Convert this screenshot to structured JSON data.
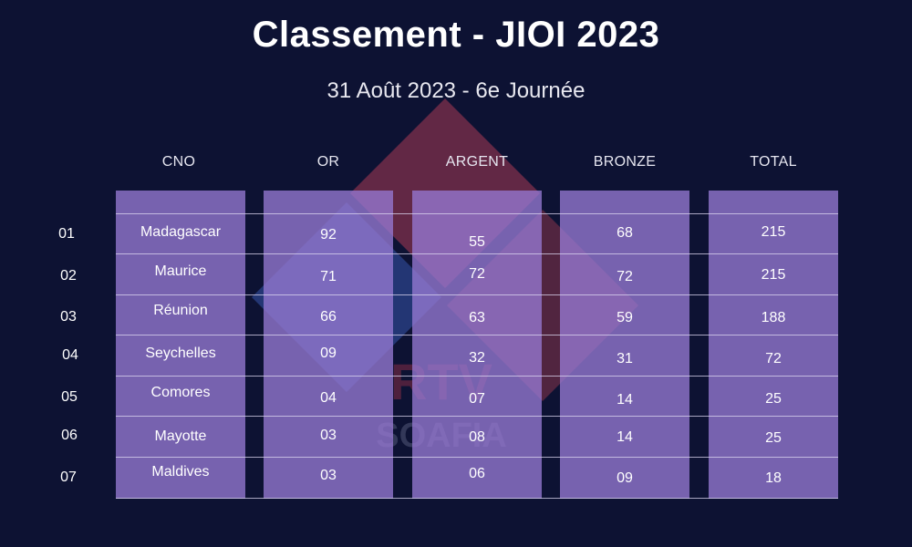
{
  "title": "Classement - JIOI 2023",
  "subtitle": "31 Août 2023 - 6e Journée",
  "watermark": {
    "line1": "RTV",
    "line2": "SOAFIA"
  },
  "columns": [
    "CNO",
    "OR",
    "ARGENT",
    "BRONZE",
    "TOTAL"
  ],
  "rows": [
    {
      "rank": "01",
      "cno": "Madagascar",
      "or": "92",
      "argent": "55",
      "bronze": "68",
      "total": "215"
    },
    {
      "rank": "02",
      "cno": "Maurice",
      "or": "71",
      "argent": "72",
      "bronze": "72",
      "total": "215"
    },
    {
      "rank": "03",
      "cno": "Réunion",
      "or": "66",
      "argent": "63",
      "bronze": "59",
      "total": "188"
    },
    {
      "rank": "04",
      "cno": "Seychelles",
      "or": "09",
      "argent": "32",
      "bronze": "31",
      "total": "72"
    },
    {
      "rank": "05",
      "cno": "Comores",
      "or": "04",
      "argent": "07",
      "bronze": "14",
      "total": "25"
    },
    {
      "rank": "06",
      "cno": "Mayotte",
      "or": "03",
      "argent": "08",
      "bronze": "14",
      "total": "25"
    },
    {
      "rank": "07",
      "cno": "Maldives",
      "or": "03",
      "argent": "06",
      "bronze": "09",
      "total": "18"
    }
  ],
  "colors": {
    "background": "#0d1233",
    "column_fill": "#9678d2",
    "watermark_red": "#d24a5a",
    "watermark_blue": "#4a68c8"
  }
}
